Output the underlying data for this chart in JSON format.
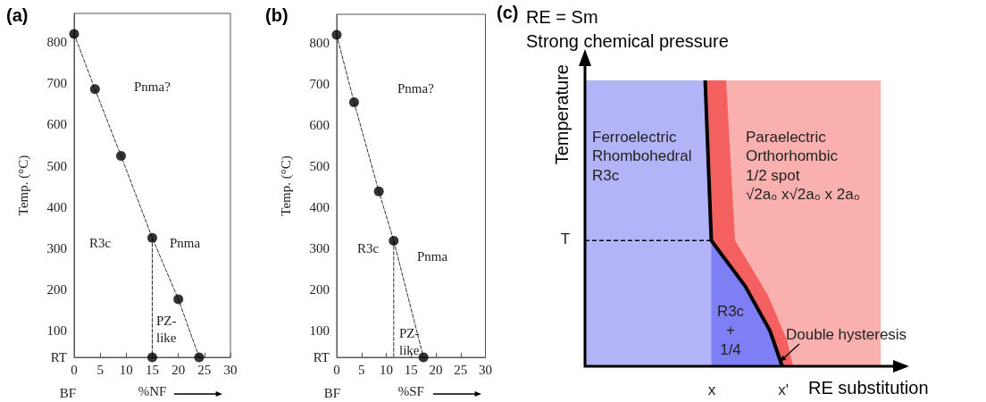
{
  "chart_data": [
    {
      "type": "scatter",
      "title": "(a)",
      "xlabel": "%NF",
      "ylabel": "Temp. (°C)",
      "xlim": [
        0,
        30
      ],
      "xticks": [
        0,
        5,
        10,
        15,
        20,
        25,
        30
      ],
      "ylim": [
        35,
        870
      ],
      "yticks": [
        {
          "value": 35,
          "label": "RT"
        },
        100,
        200,
        300,
        400,
        500,
        600,
        700,
        800
      ],
      "line_style": "dashed",
      "annotations": [
        "BF",
        "Pnma?",
        "R3c",
        "Pnma",
        "PZ-\nlike"
      ],
      "series": [
        {
          "type": "line",
          "color": "#333333",
          "x": [
            0,
            4,
            9,
            15,
            20,
            24
          ],
          "values": [
            820,
            686,
            524,
            325,
            176,
            35
          ]
        },
        {
          "type": "line",
          "color": "#333333",
          "x": [
            15,
            15
          ],
          "values": [
            325,
            35
          ]
        },
        {
          "marker": "circle",
          "color": "#000000",
          "x": [
            0,
            4,
            9,
            15,
            20,
            24,
            15
          ],
          "values": [
            820,
            686,
            524,
            325,
            176,
            35,
            35
          ]
        }
      ]
    },
    {
      "type": "scatter",
      "title": "(b)",
      "xlabel": "%SF",
      "ylabel": "Temp. (°C)",
      "xlim": [
        0,
        30
      ],
      "xticks": [
        0,
        5,
        10,
        15,
        20,
        25,
        30
      ],
      "ylim": [
        35,
        870
      ],
      "yticks": [
        {
          "value": 35,
          "label": "RT"
        },
        100,
        200,
        300,
        400,
        500,
        600,
        700,
        800
      ],
      "line_style": "dashed",
      "annotations": [
        "BF",
        "Pnma?",
        "R3c",
        "Pnma",
        "PZ-\nlike"
      ],
      "series": [
        {
          "type": "line",
          "color": "#333333",
          "x": [
            0,
            3.5,
            8.5,
            11.5,
            17.5
          ],
          "values": [
            820,
            656,
            439,
            319,
            35
          ]
        },
        {
          "type": "line",
          "color": "#333333",
          "x": [
            11.5,
            11.5
          ],
          "values": [
            319,
            35
          ]
        },
        {
          "marker": "circle",
          "color": "#000000",
          "x": [
            0,
            3.5,
            8.5,
            11.5,
            17.5
          ],
          "values": [
            820,
            656,
            439,
            319,
            35
          ]
        }
      ]
    },
    {
      "type": "other",
      "title": "(c)",
      "subtitle": "RE = Sm\nStrong chemical pressure",
      "xlabel": "RE substitution",
      "ylabel": "Temperature",
      "annotations": [
        "x",
        "x'",
        "T",
        "Ferroelectric\nRhombohedral\nR3c",
        "Paraelectric\nOrthorhombic\n1/2 spot\n√2a₀ x√2a₀ x 2a₀",
        "R3c\n+\n1/4",
        "Double hysteresis"
      ]
    }
  ]
}
